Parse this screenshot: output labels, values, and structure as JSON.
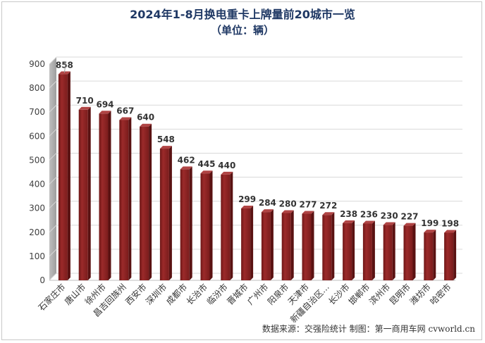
{
  "chart_data": {
    "type": "bar",
    "title": "2024年1-8月换电重卡上牌量前20城市一览",
    "subtitle": "（单位：辆）",
    "categories": [
      "石家庄市",
      "唐山市",
      "徐州市",
      "昌吉回族州",
      "西安市",
      "深圳市",
      "成都市",
      "长治市",
      "临汾市",
      "晋城市",
      "广州市",
      "阳泉市",
      "天津市",
      "新疆自治区…",
      "长沙市",
      "邯郸市",
      "滨州市",
      "昆明市",
      "潍坊市",
      "哈密市"
    ],
    "values": [
      858,
      710,
      694,
      667,
      640,
      548,
      462,
      445,
      440,
      299,
      284,
      280,
      277,
      272,
      238,
      236,
      230,
      227,
      199,
      198
    ],
    "ylim": [
      0,
      900
    ],
    "yticks": [
      0,
      100,
      200,
      300,
      400,
      500,
      600,
      700,
      800,
      900
    ],
    "grid": true,
    "legend": "none",
    "bar_color": "#8b2323",
    "source": "数据来源：交强险统计  制图：第一商用车网 cvworld.cn"
  }
}
